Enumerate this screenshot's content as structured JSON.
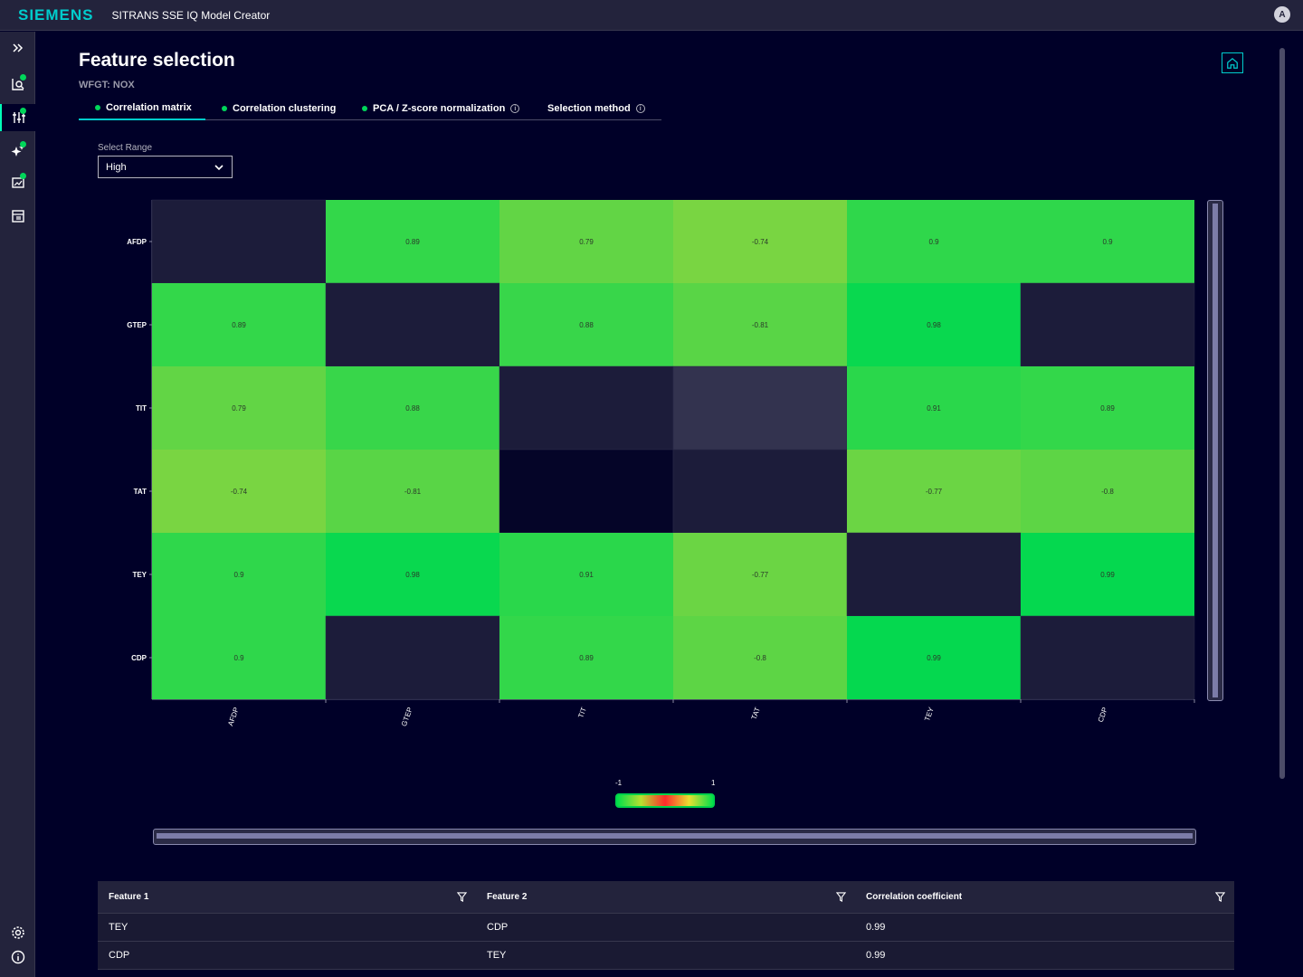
{
  "header": {
    "brand": "SIEMENS",
    "app_title": "SITRANS SSE IQ Model Creator",
    "avatar": "A"
  },
  "sidebar": {
    "items": [
      {
        "name": "expand-icon"
      },
      {
        "name": "data-analysis-icon",
        "done": true
      },
      {
        "name": "feature-selection-icon",
        "done": true,
        "active": true
      },
      {
        "name": "model-training-icon",
        "done": true
      },
      {
        "name": "evaluation-chart-icon",
        "done": true
      },
      {
        "name": "deployment-icon"
      },
      {
        "name": "settings-icon"
      },
      {
        "name": "info-icon"
      }
    ]
  },
  "page": {
    "title": "Feature selection",
    "subtitle": "WFGT: NOX"
  },
  "tabs": [
    {
      "label": "Correlation matrix",
      "done": true,
      "active": true,
      "info": false
    },
    {
      "label": "Correlation clustering",
      "done": true,
      "active": false,
      "info": false
    },
    {
      "label": "PCA / Z-score normalization",
      "done": true,
      "active": false,
      "info": true
    },
    {
      "label": "Selection method",
      "done": false,
      "active": false,
      "info": true
    }
  ],
  "range": {
    "label": "Select Range",
    "value": "High"
  },
  "chart_data": {
    "type": "heatmap",
    "features": [
      "AFDP",
      "GTEP",
      "TIT",
      "TAT",
      "TEY",
      "CDP"
    ],
    "matrix": [
      [
        null,
        0.89,
        0.79,
        -0.74,
        0.9,
        0.9
      ],
      [
        0.89,
        null,
        0.88,
        -0.81,
        0.98,
        null
      ],
      [
        0.79,
        0.88,
        null,
        null,
        0.91,
        0.89
      ],
      [
        -0.74,
        -0.81,
        null,
        null,
        -0.77,
        -0.8
      ],
      [
        0.9,
        0.98,
        0.91,
        -0.77,
        null,
        0.99
      ],
      [
        0.9,
        null,
        0.89,
        -0.8,
        0.99,
        null
      ]
    ],
    "colorscale": {
      "min": "-1",
      "max": "1"
    }
  },
  "table": {
    "columns": [
      "Feature 1",
      "Feature 2",
      "Correlation coefficient"
    ],
    "rows": [
      [
        "TEY",
        "CDP",
        "0.99"
      ],
      [
        "CDP",
        "TEY",
        "0.99"
      ]
    ]
  },
  "colors": {
    "accent": "#00cccc",
    "success": "#01d65a",
    "background": "#000028",
    "surface": "#23233c"
  }
}
